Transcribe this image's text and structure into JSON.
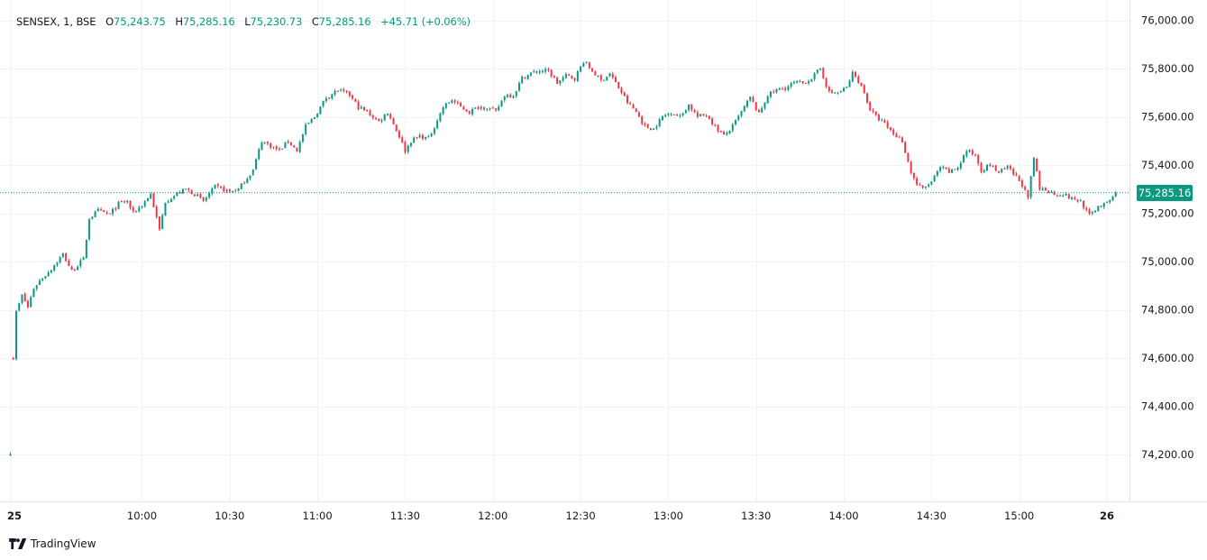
{
  "legend": {
    "symbol": "SENSEX, 1, BSE",
    "open_label": "O",
    "open": "75,243.75",
    "high_label": "H",
    "high": "75,285.16",
    "low_label": "L",
    "low": "75,230.73",
    "close_label": "C",
    "close": "75,285.16",
    "change": "+45.71 (+0.06%)"
  },
  "last_price_label": "75,285.16",
  "brand": {
    "name": "TradingView",
    "icon": "tradingview-logo-icon"
  },
  "colors": {
    "up": "#089981",
    "down": "#F23645",
    "grid": "#F0F3FA",
    "text": "#131722",
    "axis_border": "#E0E3EB"
  },
  "chart_data": {
    "type": "candlestick",
    "symbol": "SENSEX",
    "interval": "1",
    "exchange": "BSE",
    "ylim": [
      74050,
      76050
    ],
    "y_ticks": [
      "76,000.00",
      "75,800.00",
      "75,600.00",
      "75,400.00",
      "75,200.00",
      "75,000.00",
      "74,800.00",
      "74,600.00",
      "74,400.00",
      "74,200.00"
    ],
    "y_tick_values": [
      76000,
      75800,
      75600,
      75400,
      75200,
      75000,
      74800,
      74600,
      74400,
      74200
    ],
    "x_ticks": [
      "25",
      "10:00",
      "10:30",
      "11:00",
      "11:30",
      "12:00",
      "12:30",
      "13:00",
      "13:30",
      "14:00",
      "14:30",
      "15:00",
      "26"
    ],
    "x_tick_minutes": [
      0,
      45,
      75,
      105,
      135,
      165,
      195,
      225,
      255,
      285,
      315,
      345,
      375
    ],
    "last_price": 75285.16,
    "grid": true,
    "price_path": [
      [
        0,
        74210
      ],
      [
        1,
        74600
      ],
      [
        2,
        74790
      ],
      [
        4,
        74860
      ],
      [
        6,
        74810
      ],
      [
        8,
        74890
      ],
      [
        10,
        74920
      ],
      [
        14,
        74970
      ],
      [
        18,
        75030
      ],
      [
        21,
        74960
      ],
      [
        25,
        75010
      ],
      [
        27,
        75180
      ],
      [
        30,
        75210
      ],
      [
        34,
        75195
      ],
      [
        37,
        75240
      ],
      [
        40,
        75250
      ],
      [
        42,
        75200
      ],
      [
        45,
        75235
      ],
      [
        48,
        75280
      ],
      [
        51,
        75130
      ],
      [
        53,
        75250
      ],
      [
        57,
        75280
      ],
      [
        60,
        75300
      ],
      [
        63,
        75280
      ],
      [
        66,
        75250
      ],
      [
        70,
        75310
      ],
      [
        75,
        75290
      ],
      [
        78,
        75300
      ],
      [
        83,
        75380
      ],
      [
        86,
        75500
      ],
      [
        89,
        75480
      ],
      [
        92,
        75460
      ],
      [
        95,
        75500
      ],
      [
        98,
        75460
      ],
      [
        101,
        75560
      ],
      [
        104,
        75600
      ],
      [
        108,
        75680
      ],
      [
        112,
        75710
      ],
      [
        116,
        75690
      ],
      [
        119,
        75640
      ],
      [
        122,
        75620
      ],
      [
        126,
        75580
      ],
      [
        129,
        75620
      ],
      [
        131,
        75570
      ],
      [
        133,
        75520
      ],
      [
        135,
        75460
      ],
      [
        137,
        75500
      ],
      [
        140,
        75520
      ],
      [
        143,
        75510
      ],
      [
        145,
        75560
      ],
      [
        148,
        75640
      ],
      [
        151,
        75670
      ],
      [
        154,
        75640
      ],
      [
        157,
        75620
      ],
      [
        160,
        75640
      ],
      [
        163,
        75640
      ],
      [
        166,
        75620
      ],
      [
        169,
        75690
      ],
      [
        172,
        75690
      ],
      [
        175,
        75760
      ],
      [
        178,
        75780
      ],
      [
        181,
        75790
      ],
      [
        184,
        75790
      ],
      [
        187,
        75740
      ],
      [
        190,
        75770
      ],
      [
        193,
        75760
      ],
      [
        196,
        75830
      ],
      [
        199,
        75790
      ],
      [
        202,
        75750
      ],
      [
        205,
        75780
      ],
      [
        208,
        75720
      ],
      [
        211,
        75660
      ],
      [
        214,
        75620
      ],
      [
        217,
        75560
      ],
      [
        220,
        75550
      ],
      [
        223,
        75600
      ],
      [
        226,
        75620
      ],
      [
        229,
        75600
      ],
      [
        232,
        75650
      ],
      [
        235,
        75600
      ],
      [
        238,
        75610
      ],
      [
        241,
        75560
      ],
      [
        244,
        75520
      ],
      [
        247,
        75560
      ],
      [
        250,
        75620
      ],
      [
        253,
        75680
      ],
      [
        256,
        75610
      ],
      [
        259,
        75690
      ],
      [
        262,
        75710
      ],
      [
        265,
        75720
      ],
      [
        268,
        75740
      ],
      [
        271,
        75740
      ],
      [
        274,
        75760
      ],
      [
        277,
        75800
      ],
      [
        280,
        75700
      ],
      [
        283,
        75700
      ],
      [
        286,
        75720
      ],
      [
        288,
        75780
      ],
      [
        290,
        75750
      ],
      [
        292,
        75700
      ],
      [
        294,
        75630
      ],
      [
        296,
        75600
      ],
      [
        299,
        75570
      ],
      [
        302,
        75530
      ],
      [
        305,
        75500
      ],
      [
        308,
        75370
      ],
      [
        310,
        75320
      ],
      [
        312,
        75300
      ],
      [
        315,
        75330
      ],
      [
        318,
        75390
      ],
      [
        321,
        75370
      ],
      [
        324,
        75390
      ],
      [
        327,
        75460
      ],
      [
        330,
        75440
      ],
      [
        332,
        75380
      ],
      [
        335,
        75400
      ],
      [
        338,
        75370
      ],
      [
        341,
        75390
      ],
      [
        344,
        75350
      ],
      [
        346,
        75320
      ],
      [
        348,
        75260
      ],
      [
        350,
        75430
      ],
      [
        352,
        75300
      ],
      [
        354,
        75300
      ],
      [
        357,
        75280
      ],
      [
        360,
        75280
      ],
      [
        363,
        75260
      ],
      [
        366,
        75250
      ],
      [
        369,
        75190
      ],
      [
        372,
        75230
      ],
      [
        375,
        75240
      ],
      [
        378,
        75285.16
      ]
    ]
  }
}
